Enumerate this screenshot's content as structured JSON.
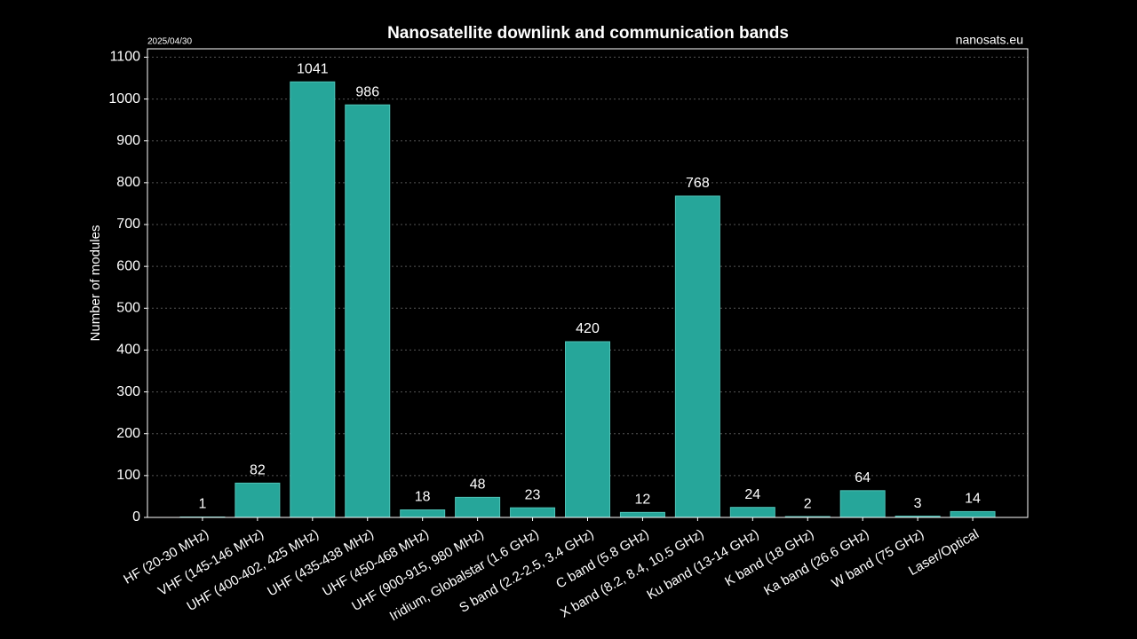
{
  "chart_data": {
    "type": "bar",
    "title": "Nanosatellite downlink and communication bands",
    "date": "2025/04/30",
    "source": "nanosats.eu",
    "y_label": "Number of modules",
    "categories": [
      "HF (20-30 MHz)",
      "VHF (145-146 MHz)",
      "UHF (400-402, 425 MHz)",
      "UHF (435-438 MHz)",
      "UHF (450-468 MHz)",
      "UHF (900-915, 980 MHz)",
      "Iridium, Globalstar (1.6 GHz)",
      "S band (2.2-2.5, 3.4 GHz)",
      "C band (5.8 GHz)",
      "X band (8.2, 8.4, 10.5 GHz)",
      "Ku band (13-14 GHz)",
      "K band (18 GHz)",
      "Ka band (26.6 GHz)",
      "W band (75 GHz)",
      "Laser/Optical"
    ],
    "values": [
      1,
      82,
      1041,
      986,
      18,
      48,
      23,
      420,
      12,
      768,
      24,
      2,
      64,
      3,
      14
    ],
    "color": "#26a69a",
    "ylim": [
      0,
      1120
    ],
    "yticks": [
      0,
      100,
      200,
      300,
      400,
      500,
      600,
      700,
      800,
      900,
      1000,
      1100
    ],
    "grid": true
  }
}
